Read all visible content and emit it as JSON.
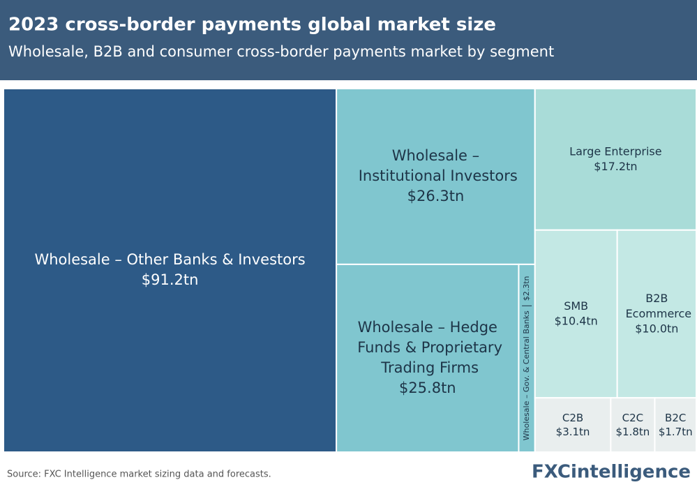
{
  "chart_data": {
    "type": "treemap",
    "title": "2023 cross-border payments global market size",
    "subtitle": "Wholesale, B2B and consumer cross-border payments market by segment",
    "categories": [
      "Wholesale – Other Banks & Investors",
      "Wholesale – Institutional Investors",
      "Wholesale – Hedge Funds & Proprietary Trading Firms",
      "Wholesale – Gov. & Central Banks",
      "Large Enterprise",
      "SMB",
      "B2B Ecommerce",
      "C2B",
      "C2C",
      "B2C"
    ],
    "values": [
      91.2,
      26.3,
      25.8,
      2.3,
      17.2,
      10.4,
      10.0,
      3.1,
      1.8,
      1.7
    ],
    "value_labels": [
      "$91.2tn",
      "$26.3tn",
      "$25.8tn",
      "$2.3tn",
      "$17.2tn",
      "$10.4tn",
      "$10.0tn",
      "$3.1tn",
      "$1.8tn",
      "$1.7tn"
    ],
    "colors": [
      "#2d5a87",
      "#80c6cf",
      "#80c6cf",
      "#80c6cf",
      "#a9dcd8",
      "#c3e8e4",
      "#c3e8e4",
      "#e9eeee",
      "#e9eeee",
      "#e9eeee"
    ],
    "source": "Source: FXC Intelligence market sizing data and forecasts.",
    "logo": "FXCintelligence"
  }
}
